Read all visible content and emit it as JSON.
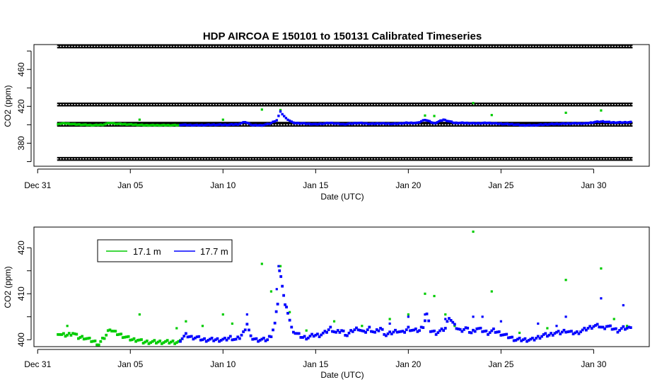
{
  "colors": {
    "green": "#00cc00",
    "blue": "#0000ff",
    "black": "#000000"
  },
  "chart_data": [
    {
      "type": "scatter",
      "title": "HDP   AIRCOA  E   150101  to  150131   Calibrated Timeseries",
      "xlabel": "Date (UTC)",
      "ylabel": "CO2 (ppm)",
      "x_ticks": [
        {
          "day": 0,
          "label": "Dec 31"
        },
        {
          "day": 5,
          "label": "Jan 05"
        },
        {
          "day": 10,
          "label": "Jan 10"
        },
        {
          "day": 15,
          "label": "Jan 15"
        },
        {
          "day": 20,
          "label": "Jan 20"
        },
        {
          "day": 25,
          "label": "Jan 25"
        },
        {
          "day": 30,
          "label": "Jan 30"
        }
      ],
      "xlim": [
        -0.2,
        33.0
      ],
      "ylim": [
        355,
        487
      ],
      "y_ticks": [
        380,
        420,
        460
      ],
      "y_tick_labels": [
        "380",
        "420",
        "460"
      ],
      "y_minor_ticks": [
        360,
        400,
        440,
        480
      ],
      "reference_lines": [
        {
          "y": 485,
          "x_range": [
            1.05,
            32.1
          ],
          "color": "#000000"
        },
        {
          "y": 422,
          "x_range": [
            1.05,
            32.1
          ],
          "color": "#000000"
        },
        {
          "y": 401,
          "x_range": [
            1.05,
            32.1
          ],
          "color": "#000000"
        },
        {
          "y": 400,
          "x_range": [
            1.05,
            32.1
          ],
          "color": "#000000"
        },
        {
          "y": 363,
          "x_range": [
            1.05,
            32.1
          ],
          "color": "#000000"
        }
      ],
      "series": [
        {
          "name": "17.1 m",
          "color": "#00cc00",
          "x": [
            1.1,
            1.5,
            2.0,
            2.5,
            3.0,
            3.5,
            3.9,
            4.3,
            4.8,
            5.3,
            5.8,
            6.3,
            6.8,
            7.3,
            7.6
          ],
          "y": [
            401,
            401.5,
            400.5,
            400,
            399.5,
            400,
            402,
            401,
            400.5,
            400,
            399.5,
            399.5,
            399.5,
            399.5,
            399.5
          ],
          "outliers": {
            "x": [
              5.5,
              10.0,
              12.1,
              13.1,
              20.9,
              21.4,
              23.5,
              24.5,
              28.5,
              30.4
            ],
            "y": [
              405.5,
              405.5,
              416.5,
              416,
              410,
              409.5,
              423.5,
              410.5,
              413,
              415.5
            ]
          }
        },
        {
          "name": "17.7 m",
          "color": "#0000ff",
          "x": [
            7.7,
            8.5,
            9.5,
            10.3,
            10.8,
            11.2,
            11.6,
            12.1,
            12.5,
            12.9,
            13.1,
            13.4,
            13.8,
            14.3,
            15.0,
            15.8,
            16.5,
            17.3,
            18.0,
            18.5,
            19.2,
            19.9,
            20.5,
            20.9,
            21.4,
            21.9,
            22.5,
            23.0,
            23.6,
            24.3,
            25.0,
            25.6,
            26.2,
            26.8,
            27.5,
            28.2,
            28.9,
            29.6,
            30.1,
            30.5,
            31.0,
            31.6,
            32.0
          ],
          "y": [
            400,
            399.5,
            400,
            400,
            400.5,
            403,
            399.5,
            399.5,
            401,
            405,
            414,
            407,
            402,
            401.5,
            400.5,
            402,
            400.5,
            402,
            401,
            401.5,
            401,
            402,
            402,
            405.5,
            401.5,
            405.5,
            402,
            402,
            401.5,
            402,
            401,
            400.5,
            399.5,
            399.5,
            400.5,
            401,
            401.5,
            401.5,
            403,
            403.5,
            402.5,
            402.5,
            403
          ]
        }
      ]
    },
    {
      "type": "scatter",
      "xlabel": "Date (UTC)",
      "ylabel": "CO2 (ppm)",
      "x_ticks": [
        {
          "day": 0,
          "label": "Dec 31"
        },
        {
          "day": 5,
          "label": "Jan 05"
        },
        {
          "day": 10,
          "label": "Jan 10"
        },
        {
          "day": 15,
          "label": "Jan 15"
        },
        {
          "day": 20,
          "label": "Jan 20"
        },
        {
          "day": 25,
          "label": "Jan 25"
        },
        {
          "day": 30,
          "label": "Jan 30"
        }
      ],
      "xlim": [
        -0.2,
        33.0
      ],
      "ylim": [
        398.5,
        424.5
      ],
      "y_ticks": [
        400,
        410,
        420
      ],
      "y_tick_labels": [
        "400",
        "410",
        "420"
      ],
      "y_minor_ticks": [
        405,
        415
      ],
      "legend": {
        "position": "top-left",
        "entries": [
          "17.1 m",
          "17.7 m"
        ]
      },
      "series": [
        {
          "name": "17.1 m",
          "color": "#00cc00",
          "x": [
            1.1,
            1.3,
            1.6,
            1.9,
            2.2,
            2.5,
            2.8,
            3.1,
            3.3,
            3.5,
            3.7,
            3.9,
            4.0,
            4.2,
            4.5,
            4.8,
            5.1,
            5.4,
            5.7,
            6.0,
            6.3,
            6.6,
            6.9,
            7.2,
            7.5,
            7.7
          ],
          "y": [
            401.5,
            401,
            401,
            401.5,
            400.5,
            400.5,
            400,
            399.5,
            399,
            400,
            401,
            402.5,
            402,
            401.5,
            401,
            400.5,
            400,
            400,
            399.5,
            399.5,
            399.5,
            399.5,
            399.5,
            399.5,
            399.5,
            399.5
          ],
          "outliers": {
            "x": [
              1.6,
              5.5,
              7.5,
              8.0,
              8.9,
              10.0,
              10.5,
              12.1,
              12.6,
              13.1,
              13.6,
              14.5,
              16.0,
              17.5,
              19.0,
              20.0,
              20.9,
              21.4,
              22.0,
              22.5,
              23.5,
              24.5,
              26.0,
              27.5,
              28.5,
              30.4,
              31.1,
              31.8
            ],
            "y": [
              403,
              405.5,
              402.5,
              404,
              403,
              405.5,
              403.5,
              416.5,
              410.5,
              416,
              406,
              402,
              404,
              403,
              404.5,
              405.5,
              410,
              409.5,
              405.5,
              403,
              423.5,
              410.5,
              401.5,
              402.5,
              413,
              415.5,
              404.5,
              403
            ]
          }
        },
        {
          "name": "17.7 m",
          "color": "#0000ff",
          "x": [
            7.7,
            8.0,
            8.3,
            8.6,
            8.9,
            9.2,
            9.5,
            9.8,
            10.1,
            10.4,
            10.7,
            10.9,
            11.1,
            11.3,
            11.5,
            11.8,
            12.1,
            12.4,
            12.6,
            12.8,
            12.95,
            13.05,
            13.2,
            13.35,
            13.5,
            13.7,
            13.9,
            14.1,
            14.3,
            14.6,
            14.9,
            15.2,
            15.5,
            15.8,
            16.1,
            16.4,
            16.7,
            17.0,
            17.3,
            17.6,
            17.9,
            18.2,
            18.5,
            18.8,
            19.1,
            19.4,
            19.7,
            20.0,
            20.3,
            20.6,
            20.8,
            21.0,
            21.2,
            21.5,
            21.8,
            22.0,
            22.2,
            22.5,
            22.8,
            23.1,
            23.4,
            23.7,
            24.0,
            24.3,
            24.6,
            24.9,
            25.2,
            25.5,
            25.8,
            26.1,
            26.4,
            26.7,
            27.0,
            27.3,
            27.6,
            27.9,
            28.2,
            28.5,
            28.8,
            29.1,
            29.4,
            29.7,
            30.0,
            30.3,
            30.5,
            30.7,
            31.0,
            31.3,
            31.6,
            31.9,
            32.0
          ],
          "y": [
            400,
            401,
            400.5,
            400.5,
            400,
            400,
            400,
            400,
            400,
            400.5,
            400,
            400.5,
            401.5,
            403.5,
            400.5,
            400,
            400,
            400,
            401,
            403.5,
            408,
            415,
            412,
            407.5,
            406,
            402.5,
            401.5,
            401,
            400.5,
            400.5,
            401,
            401,
            401.5,
            402.5,
            401.5,
            402,
            401,
            402,
            402.5,
            401.5,
            402.5,
            401.5,
            402.5,
            401,
            401.5,
            402,
            401.5,
            402.5,
            402,
            402,
            403,
            405.5,
            402,
            401.5,
            402,
            402.5,
            405,
            403,
            402,
            402.5,
            401.5,
            402.5,
            402,
            401.5,
            402,
            401.5,
            401,
            400.5,
            400,
            400,
            400,
            400,
            400.5,
            401,
            401,
            401.5,
            401.5,
            402,
            401.5,
            401.5,
            402,
            402.5,
            403,
            403,
            402.5,
            403,
            402.5,
            402,
            402.5,
            402.5,
            403
          ],
          "outliers": {
            "x": [
              11.3,
              12.9,
              13.0,
              19.0,
              20.0,
              20.9,
              22.0,
              23.5,
              24.0,
              25.0,
              27.0,
              28.0,
              28.5,
              30.4,
              31.6
            ],
            "y": [
              405.5,
              411,
              416,
              403.5,
              405,
              405.5,
              404.5,
              405,
              405,
              404,
              403.5,
              403,
              405,
              409,
              407.5
            ]
          }
        }
      ]
    }
  ]
}
